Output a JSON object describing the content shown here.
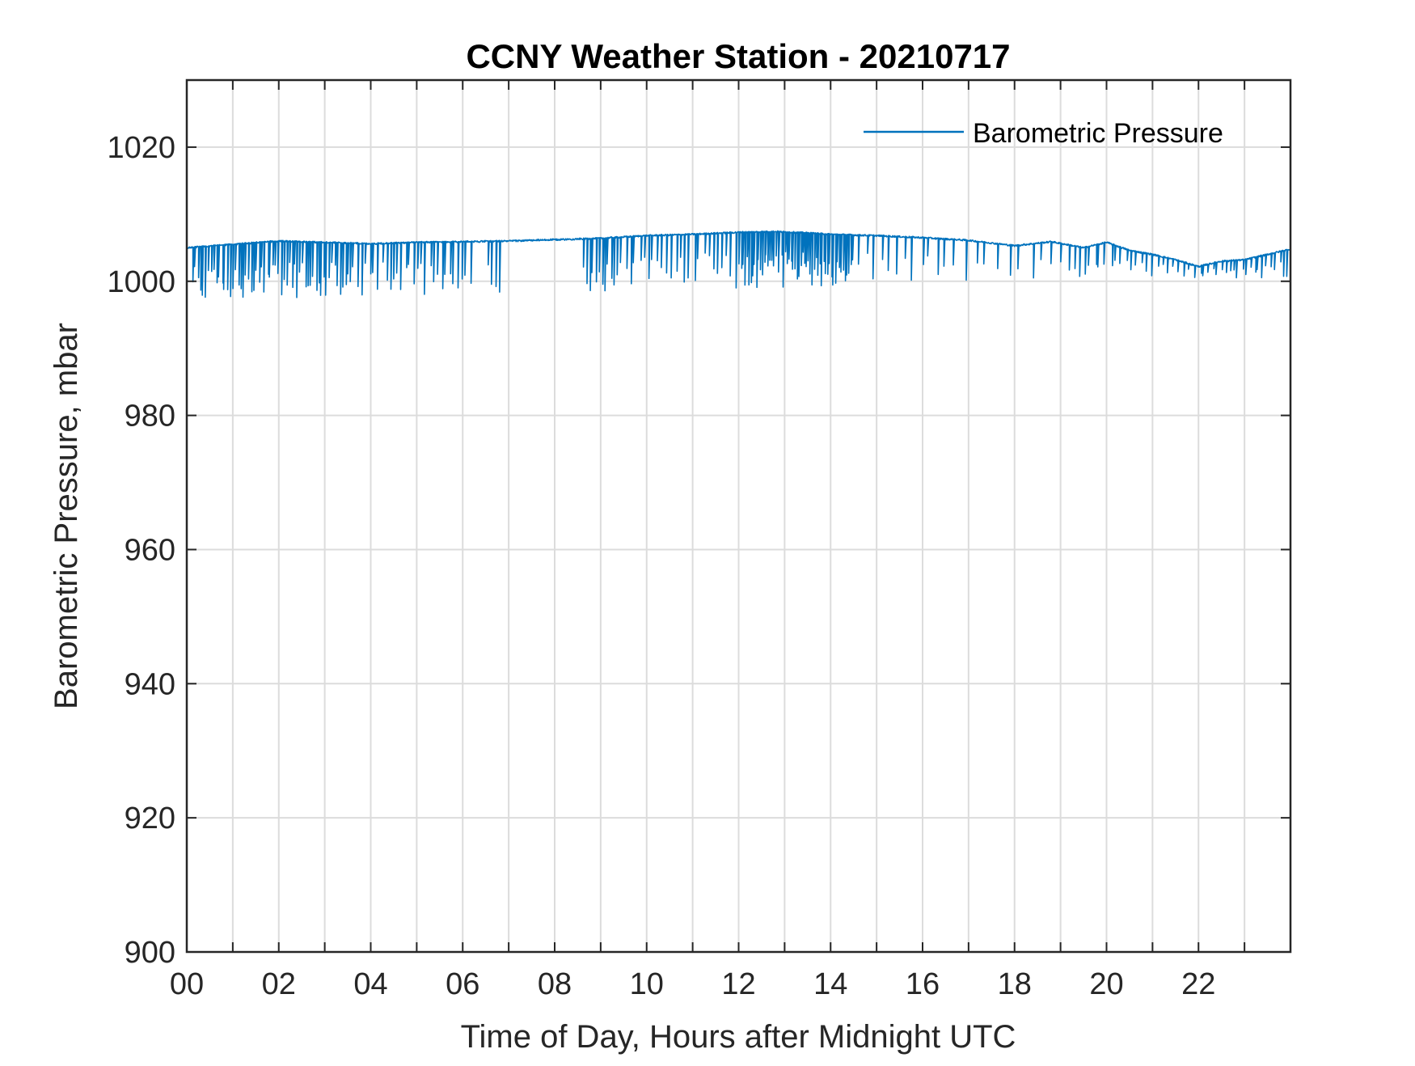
{
  "chart_data": {
    "type": "line",
    "title": "CCNY Weather Station - 20210717",
    "xlabel": "Time of Day, Hours after Midnight UTC",
    "ylabel": "Barometric Pressure, mbar",
    "xlim": [
      0,
      24
    ],
    "ylim": [
      900,
      1030
    ],
    "xticks": [
      0,
      2,
      4,
      6,
      8,
      10,
      12,
      14,
      16,
      18,
      20,
      22
    ],
    "xtick_labels": [
      "00",
      "02",
      "04",
      "06",
      "08",
      "10",
      "12",
      "14",
      "16",
      "18",
      "20",
      "22"
    ],
    "xgrid_step": 1,
    "yticks": [
      900,
      920,
      940,
      960,
      980,
      1000,
      1020
    ],
    "ytick_labels": [
      "900",
      "920",
      "940",
      "960",
      "980",
      "1000",
      "1020"
    ],
    "grid": true,
    "legend": {
      "position": "top-right",
      "entries": [
        "Barometric Pressure"
      ]
    },
    "series": [
      {
        "name": "Barometric Pressure",
        "color": "#0072BD",
        "baseline": {
          "x": [
            0,
            1,
            2,
            3,
            4,
            5,
            6,
            7,
            8,
            9,
            10,
            11,
            12,
            12.8,
            13.5,
            14,
            15,
            16,
            17,
            18,
            18.8,
            19.5,
            20,
            20.5,
            21,
            21.5,
            22,
            22.5,
            23,
            24
          ],
          "y": [
            1005.0,
            1005.5,
            1006.0,
            1005.8,
            1005.6,
            1005.8,
            1005.9,
            1006.0,
            1006.2,
            1006.4,
            1006.8,
            1007.0,
            1007.3,
            1007.4,
            1007.2,
            1007.0,
            1006.8,
            1006.5,
            1006.1,
            1005.3,
            1005.9,
            1005.0,
            1005.8,
            1004.6,
            1004.0,
            1003.2,
            1002.2,
            1003.0,
            1003.2,
            1004.8
          ]
        },
        "dropouts": [
          {
            "x_start": 0.1,
            "x_end": 3.6,
            "min": 997.5,
            "count": 60
          },
          {
            "x_start": 3.6,
            "x_end": 6.2,
            "min": 997.8,
            "count": 30
          },
          {
            "x_start": 6.5,
            "x_end": 6.9,
            "min": 998.0,
            "count": 4
          },
          {
            "x_start": 8.6,
            "x_end": 9.4,
            "min": 998.5,
            "count": 12
          },
          {
            "x_start": 9.4,
            "x_end": 12.0,
            "min": 999.0,
            "count": 26
          },
          {
            "x_start": 12.0,
            "x_end": 14.5,
            "min": 999.0,
            "count": 60
          },
          {
            "x_start": 14.5,
            "x_end": 17.0,
            "min": 1000.0,
            "count": 14
          },
          {
            "x_start": 17.0,
            "x_end": 19.0,
            "min": 1000.5,
            "count": 8
          },
          {
            "x_start": 19.0,
            "x_end": 22.0,
            "min": 1000.5,
            "count": 26
          },
          {
            "x_start": 22.0,
            "x_end": 24.0,
            "min": 1000.5,
            "count": 22
          }
        ]
      }
    ]
  }
}
